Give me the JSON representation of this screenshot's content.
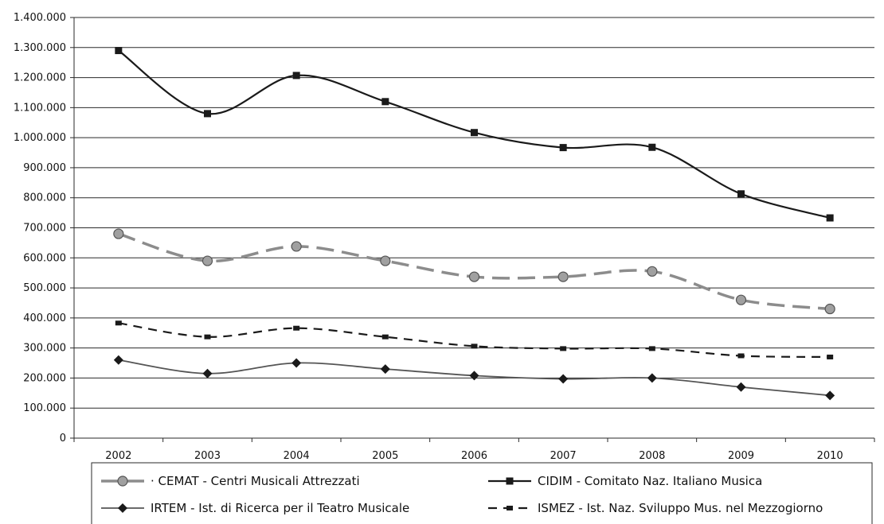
{
  "chart_data": {
    "type": "line",
    "categories": [
      "2002",
      "2003",
      "2004",
      "2005",
      "2006",
      "2007",
      "2008",
      "2009",
      "2010"
    ],
    "ylim": [
      0,
      1400000
    ],
    "yticks": [
      0,
      100000,
      200000,
      300000,
      400000,
      500000,
      600000,
      700000,
      800000,
      900000,
      1000000,
      1100000,
      1200000,
      1300000,
      1400000
    ],
    "ytick_labels": [
      "0",
      "100.000",
      "200.000",
      "300.000",
      "400.000",
      "500.000",
      "600.000",
      "700.000",
      "800.000",
      "900.000",
      "1.000.000",
      "1.100.000",
      "1.200.000",
      "1.300.000",
      "1.400.000"
    ],
    "grid": true,
    "legend_position": "bottom",
    "series": [
      {
        "name": "CEMAT - Centri Musicali Attrezzati",
        "legend_label": "· CEMAT - Centri Musicali Attrezzati",
        "values": [
          680000,
          590000,
          638000,
          590000,
          537000,
          537000,
          555000,
          460000,
          430000
        ],
        "style": "dashed-thick",
        "marker": "circle",
        "color": "#8c8c8c",
        "marker_fill": "#a0a0a0"
      },
      {
        "name": "CIDIM - Comitato Naz. Italiano Musica",
        "legend_label": "CIDIM - Comitato Naz. Italiano Musica",
        "values": [
          1290000,
          1080000,
          1207000,
          1120000,
          1017000,
          967000,
          968000,
          813000,
          733000
        ],
        "style": "solid",
        "marker": "square",
        "color": "#1a1a1a",
        "marker_fill": "#1a1a1a"
      },
      {
        "name": "IRTEM - Ist. di Ricerca per il Teatro Musicale",
        "legend_label": "IRTEM - Ist. di Ricerca per il Teatro Musicale",
        "values": [
          260000,
          215000,
          250000,
          230000,
          208000,
          197000,
          200000,
          170000,
          142000
        ],
        "style": "solid-thin",
        "marker": "diamond",
        "color": "#555555",
        "marker_fill": "#1a1a1a"
      },
      {
        "name": "ISMEZ - Ist. Naz. Sviluppo Mus. nel Mezzogiorno",
        "legend_label": "ISMEZ - Ist. Naz. Sviluppo Mus. nel Mezzogiorno",
        "values": [
          383000,
          337000,
          366000,
          337000,
          306000,
          298000,
          298000,
          274000,
          270000
        ],
        "style": "dashed",
        "marker": "dash",
        "color": "#1a1a1a",
        "marker_fill": "#1a1a1a"
      }
    ]
  }
}
